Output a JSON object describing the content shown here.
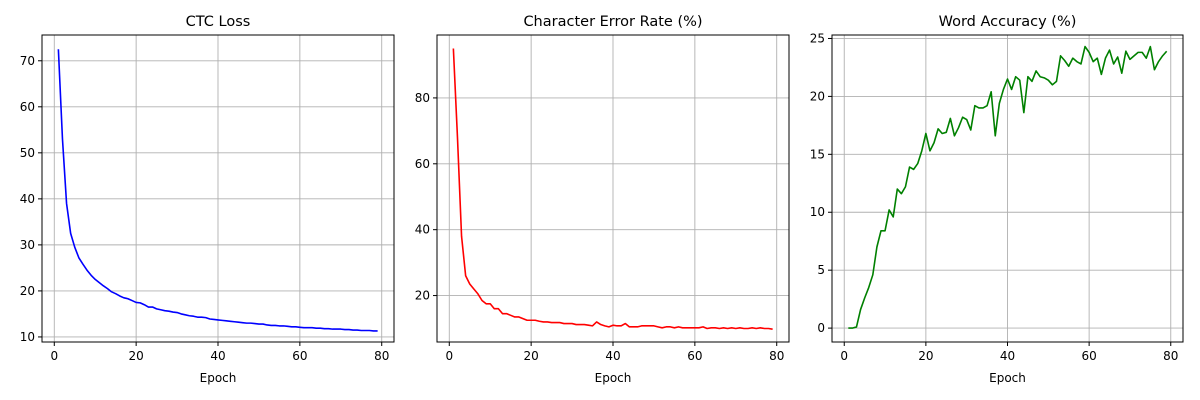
{
  "chart_data": [
    {
      "type": "line",
      "title": "CTC Loss",
      "xlabel": "Epoch",
      "ylabel": "",
      "xlim": [
        -3,
        83
      ],
      "ylim": [
        8.9,
        75.6
      ],
      "xticks": [
        0,
        20,
        40,
        60,
        80
      ],
      "yticks": [
        10,
        20,
        30,
        40,
        50,
        60,
        70
      ],
      "grid": true,
      "color": "#0000ff",
      "x": [
        1,
        2,
        3,
        4,
        5,
        6,
        7,
        8,
        9,
        10,
        11,
        12,
        13,
        14,
        15,
        16,
        17,
        18,
        19,
        20,
        21,
        22,
        23,
        24,
        25,
        26,
        27,
        28,
        29,
        30,
        31,
        32,
        33,
        34,
        35,
        36,
        37,
        38,
        39,
        40,
        41,
        42,
        43,
        44,
        45,
        46,
        47,
        48,
        49,
        50,
        51,
        52,
        53,
        54,
        55,
        56,
        57,
        58,
        59,
        60,
        61,
        62,
        63,
        64,
        65,
        66,
        67,
        68,
        69,
        70,
        71,
        72,
        73,
        74,
        75,
        76,
        77,
        78,
        79
      ],
      "y": [
        72.5,
        53.0,
        39.0,
        32.5,
        29.5,
        27.2,
        25.8,
        24.5,
        23.4,
        22.5,
        21.8,
        21.1,
        20.5,
        19.8,
        19.4,
        18.9,
        18.5,
        18.3,
        17.9,
        17.5,
        17.4,
        17.0,
        16.5,
        16.5,
        16.1,
        15.9,
        15.7,
        15.6,
        15.4,
        15.3,
        15.0,
        14.8,
        14.6,
        14.5,
        14.3,
        14.3,
        14.2,
        13.9,
        13.8,
        13.7,
        13.6,
        13.5,
        13.4,
        13.3,
        13.2,
        13.1,
        13.0,
        13.0,
        12.9,
        12.8,
        12.8,
        12.6,
        12.5,
        12.5,
        12.4,
        12.4,
        12.3,
        12.2,
        12.2,
        12.1,
        12.0,
        12.0,
        12.0,
        11.9,
        11.9,
        11.8,
        11.8,
        11.7,
        11.7,
        11.7,
        11.6,
        11.6,
        11.5,
        11.5,
        11.4,
        11.4,
        11.4,
        11.3,
        11.3
      ]
    },
    {
      "type": "line",
      "title": "Character Error Rate (%)",
      "xlabel": "Epoch",
      "ylabel": "",
      "xlim": [
        -3,
        83
      ],
      "ylim": [
        5.9,
        99.1
      ],
      "xticks": [
        0,
        20,
        40,
        60,
        80
      ],
      "yticks": [
        20,
        40,
        60,
        80
      ],
      "grid": true,
      "color": "#ff0000",
      "x": [
        1,
        2,
        3,
        4,
        5,
        6,
        7,
        8,
        9,
        10,
        11,
        12,
        13,
        14,
        15,
        16,
        17,
        18,
        19,
        20,
        21,
        22,
        23,
        24,
        25,
        26,
        27,
        28,
        29,
        30,
        31,
        32,
        33,
        34,
        35,
        36,
        37,
        38,
        39,
        40,
        41,
        42,
        43,
        44,
        45,
        46,
        47,
        48,
        49,
        50,
        51,
        52,
        53,
        54,
        55,
        56,
        57,
        58,
        59,
        60,
        61,
        62,
        63,
        64,
        65,
        66,
        67,
        68,
        69,
        70,
        71,
        72,
        73,
        74,
        75,
        76,
        77,
        78,
        79
      ],
      "y": [
        95.0,
        68.0,
        38.0,
        26.0,
        23.5,
        22.0,
        20.5,
        18.5,
        17.5,
        17.5,
        16.0,
        16.0,
        14.5,
        14.5,
        14.0,
        13.5,
        13.5,
        13.0,
        12.5,
        12.5,
        12.5,
        12.2,
        12.0,
        12.0,
        11.8,
        11.8,
        11.8,
        11.5,
        11.5,
        11.5,
        11.2,
        11.2,
        11.2,
        11.0,
        10.8,
        12.0,
        11.2,
        10.8,
        10.5,
        11.0,
        10.8,
        10.8,
        11.5,
        10.5,
        10.5,
        10.5,
        10.8,
        10.8,
        10.8,
        10.8,
        10.5,
        10.2,
        10.5,
        10.5,
        10.2,
        10.5,
        10.2,
        10.2,
        10.2,
        10.2,
        10.2,
        10.5,
        10.0,
        10.2,
        10.2,
        10.0,
        10.2,
        10.0,
        10.2,
        10.0,
        10.2,
        10.0,
        10.0,
        10.2,
        10.0,
        10.2,
        10.0,
        10.0,
        9.8
      ]
    },
    {
      "type": "line",
      "title": "Word Accuracy (%)",
      "xlabel": "Epoch",
      "ylabel": "",
      "xlim": [
        -3,
        83
      ],
      "ylim": [
        -1.2,
        25.3
      ],
      "xticks": [
        0,
        20,
        40,
        60,
        80
      ],
      "yticks": [
        0,
        5,
        10,
        15,
        20,
        25
      ],
      "grid": true,
      "color": "#008000",
      "x": [
        1,
        2,
        3,
        4,
        5,
        6,
        7,
        8,
        9,
        10,
        11,
        12,
        13,
        14,
        15,
        16,
        17,
        18,
        19,
        20,
        21,
        22,
        23,
        24,
        25,
        26,
        27,
        28,
        29,
        30,
        31,
        32,
        33,
        34,
        35,
        36,
        37,
        38,
        39,
        40,
        41,
        42,
        43,
        44,
        45,
        46,
        47,
        48,
        49,
        50,
        51,
        52,
        53,
        54,
        55,
        56,
        57,
        58,
        59,
        60,
        61,
        62,
        63,
        64,
        65,
        66,
        67,
        68,
        69,
        70,
        71,
        72,
        73,
        74,
        75,
        76,
        77,
        78,
        79
      ],
      "y": [
        0.0,
        0.0,
        0.1,
        1.6,
        2.6,
        3.5,
        4.6,
        7.0,
        8.4,
        8.4,
        10.2,
        9.6,
        12.0,
        11.6,
        12.2,
        13.9,
        13.7,
        14.2,
        15.3,
        16.8,
        15.3,
        16.0,
        17.2,
        16.8,
        16.9,
        18.1,
        16.6,
        17.3,
        18.2,
        18.0,
        17.1,
        19.2,
        19.0,
        19.0,
        19.2,
        20.4,
        16.6,
        19.4,
        20.6,
        21.5,
        20.6,
        21.7,
        21.4,
        18.6,
        21.7,
        21.3,
        22.2,
        21.7,
        21.6,
        21.4,
        21.0,
        21.3,
        23.5,
        23.1,
        22.6,
        23.3,
        23.0,
        22.8,
        24.3,
        23.8,
        23.0,
        23.3,
        21.9,
        23.3,
        24.0,
        22.8,
        23.4,
        22.0,
        23.9,
        23.2,
        23.5,
        23.8,
        23.8,
        23.3,
        24.3,
        22.3,
        23.0,
        23.5,
        23.9
      ]
    }
  ]
}
